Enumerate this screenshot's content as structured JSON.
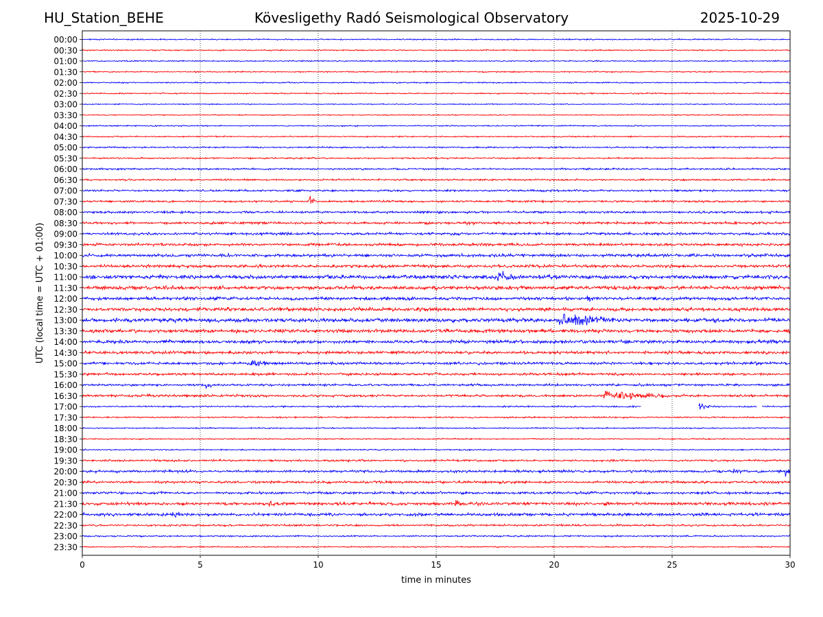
{
  "header": {
    "station": "HU_Station_BEHE",
    "observatory": "Kövesligethy Radó Seismological Observatory",
    "date": "2025-10-29"
  },
  "chart_data": {
    "type": "line",
    "title": "Kövesligethy Radó Seismological Observatory",
    "xlabel": "time in minutes",
    "ylabel": "UTC (local time = UTC + 01:00)",
    "xlim": [
      0,
      30
    ],
    "xticks": [
      0,
      5,
      10,
      15,
      20,
      25,
      30
    ],
    "vertical_gridlines_at": [
      5,
      10,
      15,
      20,
      25
    ],
    "grid_style": "dotted",
    "trace_colors": [
      "#0000ff",
      "#ff0000"
    ],
    "trace_labels": [
      "00:00",
      "00:30",
      "01:00",
      "01:30",
      "02:00",
      "02:30",
      "03:00",
      "03:30",
      "04:00",
      "04:30",
      "05:00",
      "05:30",
      "06:00",
      "06:30",
      "07:00",
      "07:30",
      "08:00",
      "08:30",
      "09:00",
      "09:30",
      "10:00",
      "10:30",
      "11:00",
      "11:30",
      "12:00",
      "12:30",
      "13:00",
      "13:30",
      "14:00",
      "14:30",
      "15:00",
      "15:30",
      "16:00",
      "16:30",
      "17:00",
      "17:30",
      "18:00",
      "18:30",
      "19:00",
      "19:30",
      "20:00",
      "20:30",
      "21:00",
      "21:30",
      "22:00",
      "22:30",
      "23:00",
      "23:30"
    ],
    "noise_levels": [
      0.5,
      0.5,
      0.5,
      0.5,
      0.5,
      0.5,
      0.4,
      0.4,
      0.5,
      0.5,
      0.6,
      0.6,
      0.7,
      0.7,
      0.8,
      0.8,
      0.9,
      1.0,
      1.0,
      1.1,
      1.2,
      1.2,
      1.5,
      1.5,
      1.3,
      1.4,
      1.5,
      1.4,
      1.3,
      1.2,
      1.1,
      1.0,
      0.9,
      1.0,
      0.6,
      0.6,
      0.5,
      0.5,
      0.5,
      0.8,
      1.0,
      1.0,
      1.0,
      1.2,
      1.2,
      0.8,
      0.6,
      0.5
    ],
    "events": [
      {
        "trace": "07:30",
        "minute": 9.6,
        "amplitude": 1.4,
        "duration": 0.1
      },
      {
        "trace": "08:30",
        "minute": 16.1,
        "amplitude": 1.0,
        "duration": 0.1
      },
      {
        "trace": "11:00",
        "minute": 17.6,
        "amplitude": 1.6,
        "duration": 1.8
      },
      {
        "trace": "11:00",
        "minute": 19.8,
        "amplitude": 1.2,
        "duration": 0.3
      },
      {
        "trace": "12:00",
        "minute": 21.4,
        "amplitude": 1.1,
        "duration": 0.4
      },
      {
        "trace": "12:30",
        "minute": 8.0,
        "amplitude": 1.0,
        "duration": 1.0
      },
      {
        "trace": "13:00",
        "minute": 20.2,
        "amplitude": 2.2,
        "duration": 3.6
      },
      {
        "trace": "15:00",
        "minute": 7.1,
        "amplitude": 1.2,
        "duration": 1.0
      },
      {
        "trace": "16:00",
        "minute": 5.2,
        "amplitude": 1.0,
        "duration": 0.2
      },
      {
        "trace": "16:30",
        "minute": 22.1,
        "amplitude": 1.6,
        "duration": 4.0
      },
      {
        "trace": "17:00",
        "minute": 26.1,
        "amplitude": 1.5,
        "duration": 0.1
      },
      {
        "trace": "20:00",
        "minute": 27.6,
        "amplitude": 1.4,
        "duration": 0.2
      },
      {
        "trace": "20:00",
        "minute": 29.8,
        "amplitude": 1.3,
        "duration": 0.2
      },
      {
        "trace": "21:30",
        "minute": 7.9,
        "amplitude": 1.2,
        "duration": 0.5
      },
      {
        "trace": "21:30",
        "minute": 15.8,
        "amplitude": 1.3,
        "duration": 0.4
      },
      {
        "trace": "21:30",
        "minute": 22.1,
        "amplitude": 1.2,
        "duration": 0.2
      },
      {
        "trace": "22:00",
        "minute": 3.8,
        "amplitude": 1.3,
        "duration": 0.2
      }
    ],
    "gaps": [
      {
        "trace": "17:00",
        "from": 23.7,
        "to": 26.1
      },
      {
        "trace": "17:00",
        "from": 28.6,
        "to": 28.8
      }
    ]
  }
}
